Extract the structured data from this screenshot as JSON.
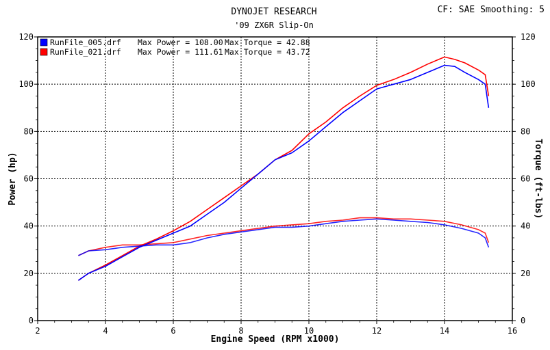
{
  "header": {
    "title": "DYNOJET RESEARCH",
    "subtitle": "'09 ZX6R Slip-On",
    "cf_label": "CF: SAE  Smoothing: 5"
  },
  "chart_data": {
    "type": "line",
    "title": "DYNOJET RESEARCH",
    "subtitle": "'09 ZX6R Slip-On",
    "xlabel": "Engine Speed (RPM x1000)",
    "ylabel_left": "Power (hp)",
    "ylabel_right": "Torque (ft-lbs)",
    "xlim": [
      2,
      16
    ],
    "ylim": [
      0,
      120
    ],
    "xticks": [
      2,
      4,
      6,
      8,
      10,
      12,
      14,
      16
    ],
    "yticks": [
      0,
      20,
      40,
      60,
      80,
      100,
      120
    ],
    "grid": true,
    "legend": "top-left",
    "legend_entries": [
      {
        "file": "RunFile_005.drf",
        "power_label": "Max Power = 108.00",
        "torque_label": "Max Torque = 42.88",
        "color": "#0000ff"
      },
      {
        "file": "RunFile_021.drf",
        "power_label": "Max Power = 111.61",
        "torque_label": "Max Torque = 43.72",
        "color": "#ff0000"
      }
    ],
    "series": [
      {
        "name": "RunFile_005.drf",
        "kind": "power",
        "color": "#0000ff",
        "x": [
          3.2,
          3.5,
          4.0,
          4.5,
          5.0,
          5.5,
          6.0,
          6.5,
          7.0,
          7.5,
          8.0,
          8.5,
          9.0,
          9.5,
          10.0,
          10.5,
          11.0,
          11.5,
          12.0,
          12.5,
          13.0,
          13.5,
          14.0,
          14.3,
          14.6,
          15.0,
          15.2,
          15.3
        ],
        "y": [
          17,
          20,
          23,
          27,
          31,
          34,
          37,
          40,
          45,
          50,
          56,
          62,
          68,
          71,
          76,
          82,
          88,
          93,
          98,
          100,
          102,
          105,
          108,
          107.5,
          105,
          102,
          100,
          90
        ]
      },
      {
        "name": "RunFile_021.drf",
        "kind": "power",
        "color": "#ff0000",
        "x": [
          3.2,
          3.5,
          4.0,
          4.5,
          5.0,
          5.5,
          6.0,
          6.5,
          7.0,
          7.5,
          8.0,
          8.5,
          9.0,
          9.5,
          10.0,
          10.5,
          11.0,
          11.5,
          12.0,
          12.5,
          13.0,
          13.5,
          14.0,
          14.3,
          14.6,
          15.0,
          15.2,
          15.3
        ],
        "y": [
          17,
          20,
          23.5,
          27.5,
          31.5,
          34.5,
          38,
          42,
          47,
          52,
          57,
          62,
          68,
          72,
          79,
          84,
          90,
          95,
          99.5,
          102,
          105,
          108.5,
          111.5,
          110.5,
          109,
          106,
          104,
          95
        ]
      },
      {
        "name": "RunFile_005.drf",
        "kind": "torque",
        "color": "#0000ff",
        "x": [
          3.2,
          3.5,
          4.0,
          4.5,
          5.0,
          5.5,
          6.0,
          6.5,
          7.0,
          7.5,
          8.0,
          8.5,
          9.0,
          9.5,
          10.0,
          10.5,
          11.0,
          11.5,
          12.0,
          12.5,
          13.0,
          13.5,
          14.0,
          14.5,
          15.0,
          15.2,
          15.3
        ],
        "y": [
          27.5,
          29.5,
          30,
          31,
          31.5,
          32,
          32,
          33,
          35,
          36.5,
          37.5,
          38.5,
          39.5,
          39.5,
          40,
          41,
          42,
          42.5,
          43,
          42.5,
          42,
          41.5,
          40.5,
          39,
          37,
          35,
          31
        ]
      },
      {
        "name": "RunFile_021.drf",
        "kind": "torque",
        "color": "#ff0000",
        "x": [
          3.2,
          3.5,
          4.0,
          4.5,
          5.0,
          5.5,
          6.0,
          6.5,
          7.0,
          7.5,
          8.0,
          8.5,
          9.0,
          9.5,
          10.0,
          10.5,
          11.0,
          11.5,
          12.0,
          12.5,
          13.0,
          13.5,
          14.0,
          14.5,
          15.0,
          15.2,
          15.3
        ],
        "y": [
          27.5,
          29.5,
          31,
          32,
          32,
          32.5,
          33,
          34.5,
          36,
          37,
          38,
          39,
          40,
          40.5,
          41,
          42,
          42.5,
          43.5,
          43.5,
          43,
          43,
          42.5,
          42,
          40.5,
          38.5,
          37,
          33
        ]
      }
    ]
  }
}
